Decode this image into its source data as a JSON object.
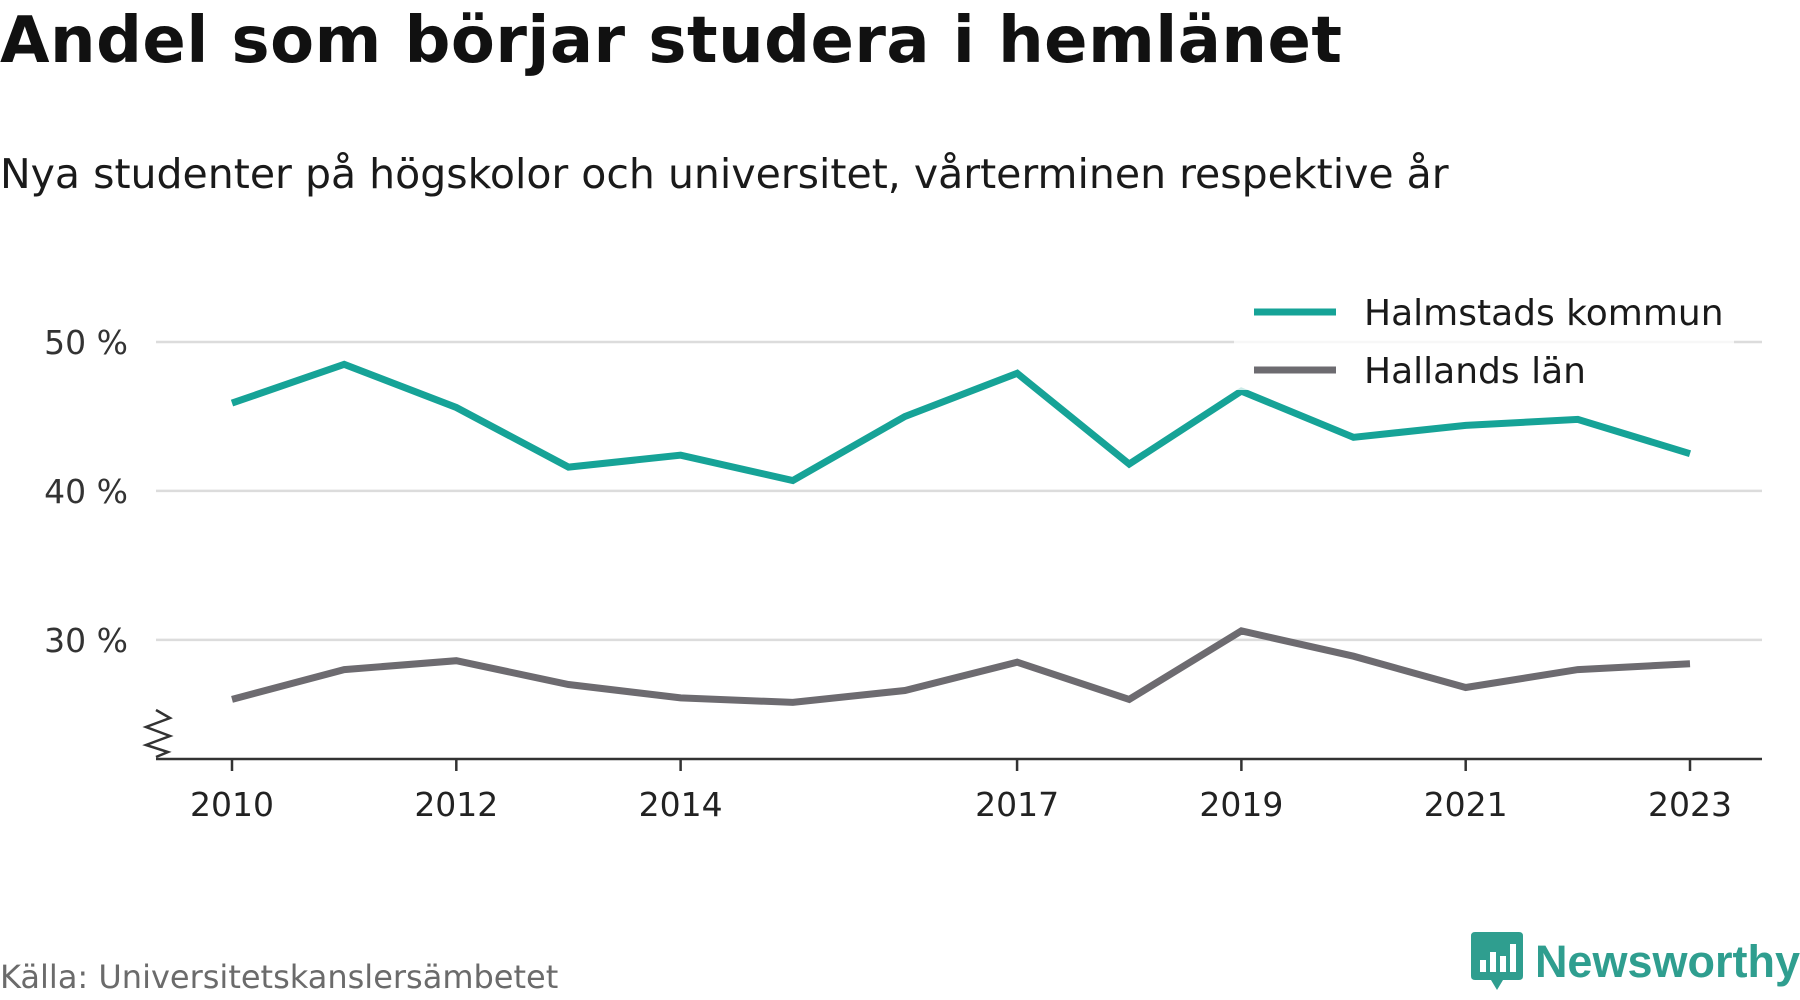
{
  "chart_data": {
    "type": "line",
    "title": "Andel som börjar studera i hemlänet",
    "subtitle": "Nya studenter på högskolor och universitet, vårterminen respektive år",
    "xlabel": "",
    "ylabel": "",
    "x": [
      2010,
      2011,
      2012,
      2013,
      2014,
      2015,
      2016,
      2017,
      2018,
      2019,
      2020,
      2021,
      2022,
      2023
    ],
    "xticks": [
      "2010",
      "2012",
      "2014",
      "2017",
      "2019",
      "2021",
      "2023"
    ],
    "yticks": [
      "50 %",
      "40 %",
      "30 %"
    ],
    "ylim": [
      22,
      50
    ],
    "y_axis_break": true,
    "grid": true,
    "legend_position": "top-right",
    "series": [
      {
        "name": "Halmstads kommun",
        "color": "#16a397",
        "values": [
          45.9,
          48.5,
          45.6,
          41.6,
          42.4,
          40.7,
          45.0,
          47.9,
          41.8,
          46.7,
          43.6,
          44.4,
          44.8,
          42.5
        ]
      },
      {
        "name": "Hallands län",
        "color": "#6d6b70",
        "values": [
          26.0,
          28.0,
          28.6,
          27.0,
          26.1,
          25.8,
          26.6,
          28.5,
          26.0,
          30.6,
          28.9,
          26.8,
          28.0,
          28.4
        ]
      }
    ]
  },
  "footer": {
    "source": "Källa: Universitetskanslersämbetet",
    "brand": "Newsworthy"
  },
  "icons": {
    "brand_icon": "newsworthy-logo-icon"
  }
}
